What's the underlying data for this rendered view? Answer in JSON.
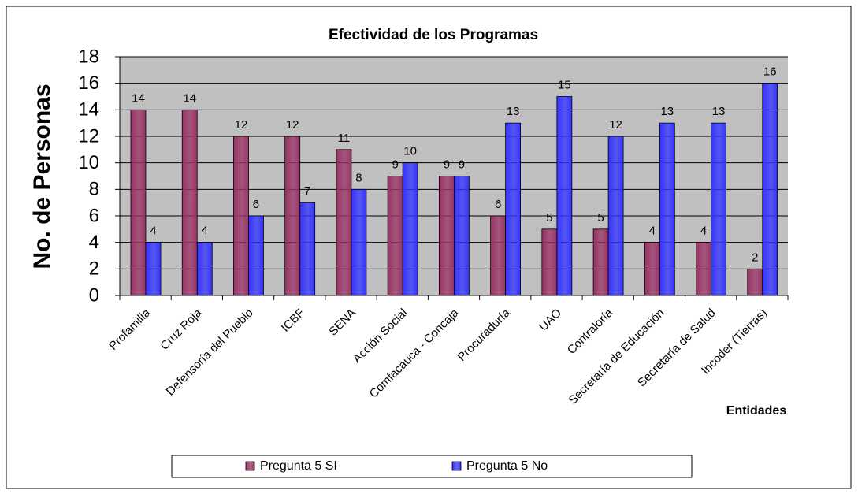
{
  "chart_data": {
    "type": "bar",
    "title": "Efectividad de los Programas",
    "y_label": "No. de Personas",
    "x_label": "Entidades",
    "categories": [
      "Profamilia",
      "Cruz Roja",
      "Defensoría del Pueblo",
      "ICBF",
      "SENA",
      "Acción Social",
      "Comfacauca - Concaja",
      "Procuraduría",
      "UAO",
      "Contraloría",
      "Secretaría de Educación",
      "Secretaría de Salud",
      "Incoder (Tierras)"
    ],
    "series": [
      {
        "name": "Pregunta 5 SI",
        "color": "#993366",
        "values": [
          14,
          14,
          12,
          12,
          11,
          9,
          9,
          6,
          5,
          5,
          4,
          4,
          2
        ]
      },
      {
        "name": "Pregunta 5 No",
        "color": "#3333ff",
        "values": [
          4,
          4,
          6,
          7,
          8,
          10,
          9,
          13,
          15,
          12,
          13,
          13,
          16
        ]
      }
    ],
    "ylim": [
      0,
      18
    ],
    "yticks": [
      0,
      2,
      4,
      6,
      8,
      10,
      12,
      14,
      16,
      18
    ],
    "grid": true,
    "legend": "bottom"
  }
}
